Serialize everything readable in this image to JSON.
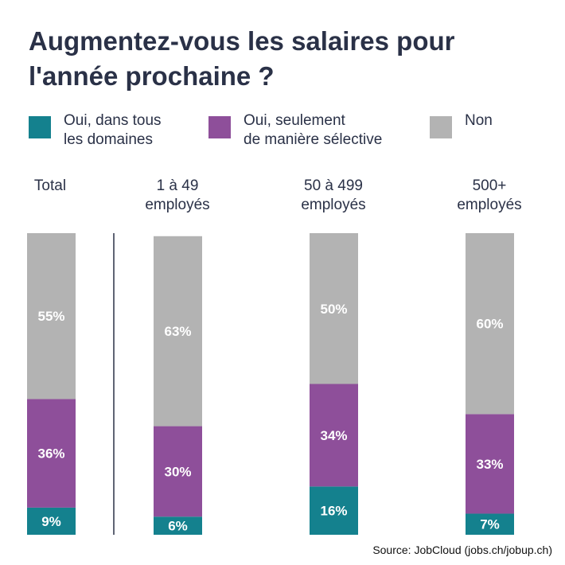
{
  "title_line1": "Augmentez-vous les salaires pour",
  "title_line2": "l'année prochaine ?",
  "colors": {
    "oui_tous": "#14818e",
    "oui_selectif": "#8e4f9a",
    "non": "#b3b3b3",
    "divider": "#2a3147"
  },
  "legend": [
    {
      "line1": "Oui, dans tous",
      "line2": "les domaines"
    },
    {
      "line1": "Oui, seulement",
      "line2": "de manière sélective"
    },
    {
      "line1": "Non",
      "line2": ""
    }
  ],
  "groups": [
    {
      "line1": "Total",
      "line2": ""
    },
    {
      "line1": "1 à 49",
      "line2": "employés"
    },
    {
      "line1": "50 à 499",
      "line2": "employés"
    },
    {
      "line1": "500+",
      "line2": "employés"
    }
  ],
  "chart_data": {
    "type": "bar",
    "stacked": true,
    "orientation": "vertical",
    "title": "Augmentez-vous les salaires pour l'année prochaine ?",
    "categories": [
      "Total",
      "1 à 49 employés",
      "50 à 499 employés",
      "500+ employés"
    ],
    "series": [
      {
        "name": "Oui, dans tous les domaines",
        "values": [
          9,
          6,
          16,
          7
        ],
        "labels": [
          "9%",
          "6%",
          "16%",
          "7%"
        ]
      },
      {
        "name": "Oui, seulement de manière sélective",
        "values": [
          36,
          30,
          34,
          33
        ],
        "labels": [
          "36%",
          "30%",
          "34%",
          "33%"
        ]
      },
      {
        "name": "Non",
        "values": [
          55,
          63,
          50,
          60
        ],
        "labels": [
          "55%",
          "63%",
          "50%",
          "60%"
        ]
      }
    ],
    "ylim": [
      0,
      100
    ],
    "legend_position": "top"
  },
  "source": "Source: JobCloud (jobs.ch/jobup.ch)"
}
